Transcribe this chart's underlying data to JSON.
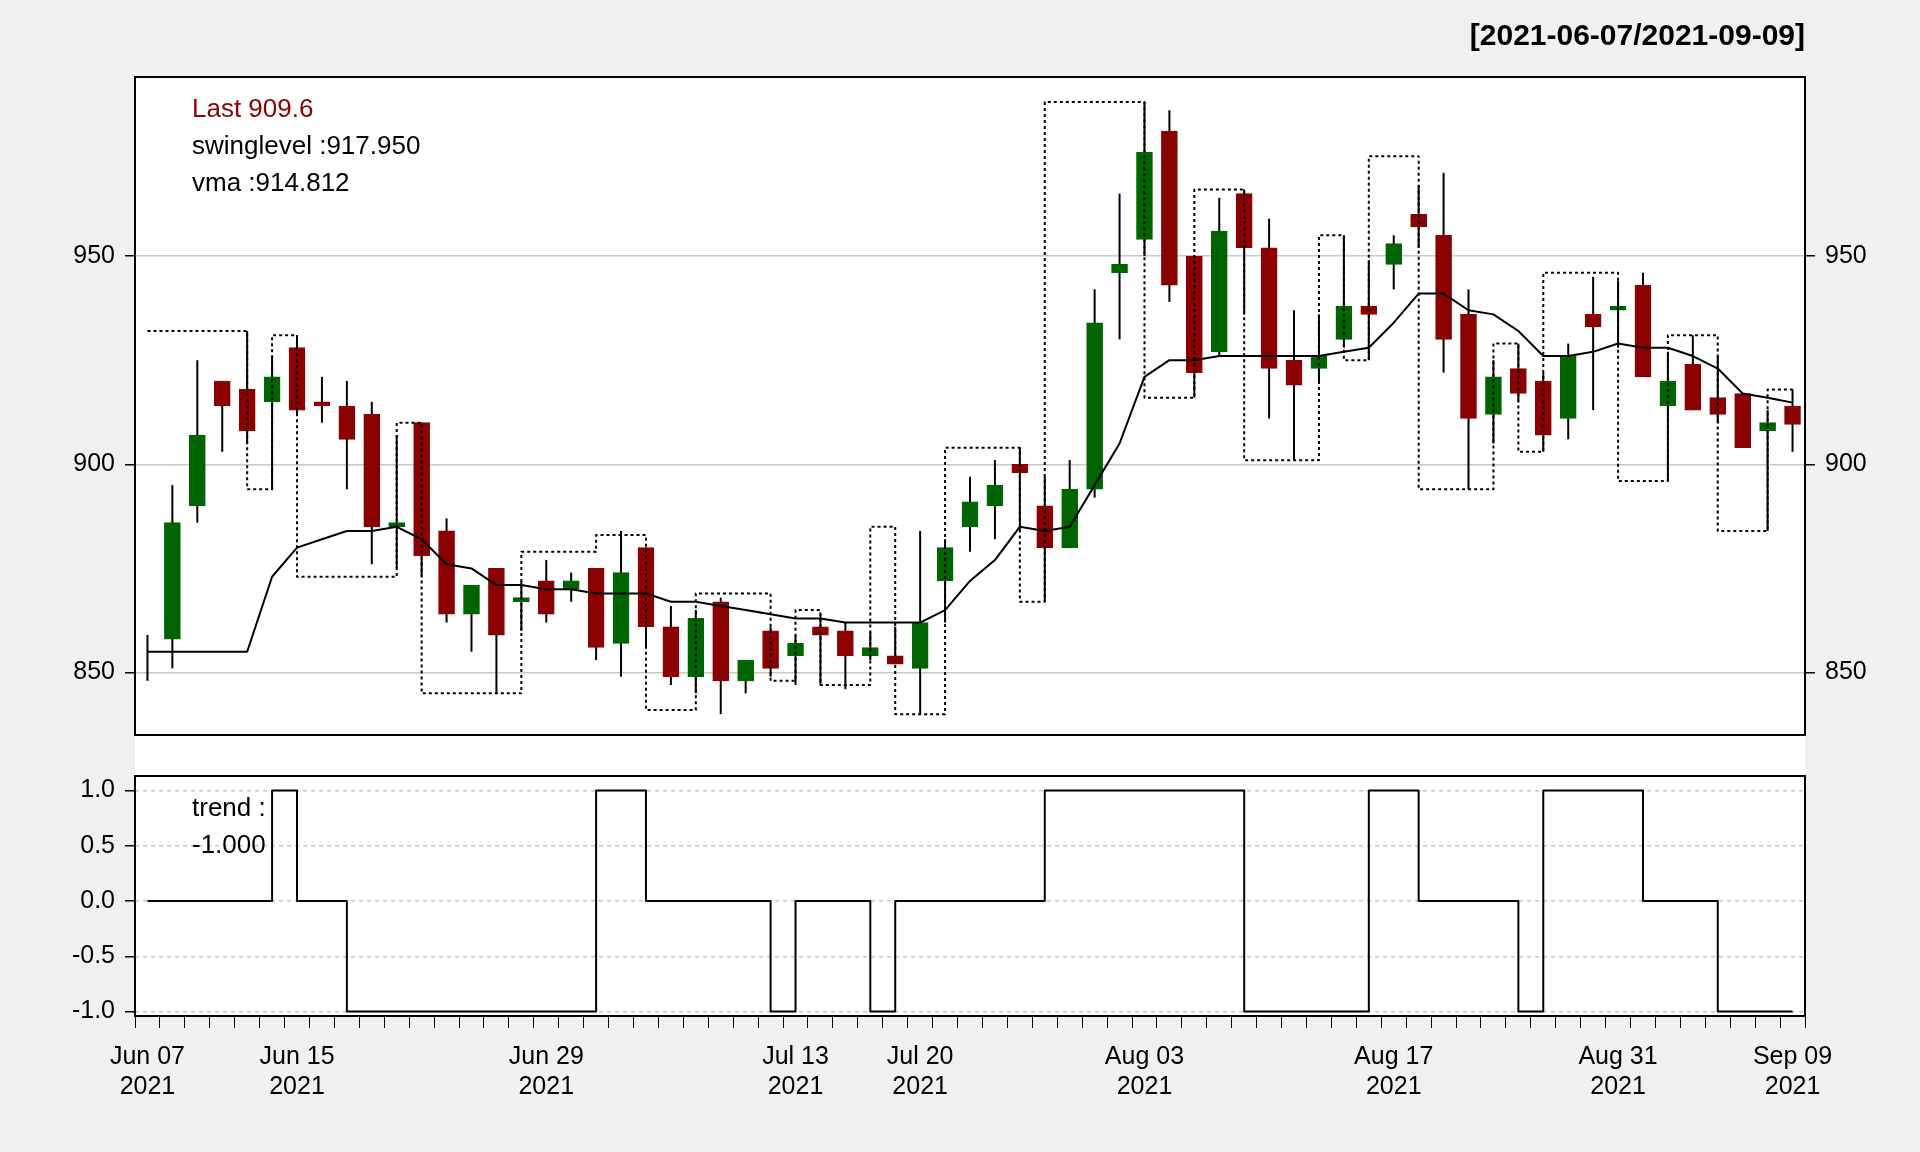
{
  "chart_data": [
    {
      "type": "candlestick",
      "subtitle": "[2021-06-07/2021-09-09]",
      "categories": [
        null,
        null,
        null,
        null,
        null,
        null,
        null,
        null,
        null,
        null,
        null,
        null,
        null,
        null,
        null,
        null,
        null,
        null,
        null,
        null,
        null,
        null,
        null,
        null,
        null,
        null,
        null,
        null,
        null,
        null,
        null,
        null,
        null,
        null,
        null,
        null,
        null,
        null,
        null,
        null,
        null,
        null,
        null,
        null,
        null,
        null,
        null,
        null,
        null,
        null,
        null,
        null,
        null,
        null,
        null,
        null,
        null,
        null,
        null,
        null,
        null,
        null,
        null,
        null,
        null,
        null,
        null
      ],
      "ohlc": [
        [
          855,
          859,
          848,
          855
        ],
        [
          858,
          895,
          851,
          886
        ],
        [
          890,
          925,
          886,
          907
        ],
        [
          920,
          920,
          903,
          914
        ],
        [
          918,
          932,
          905,
          908
        ],
        [
          915,
          926,
          894,
          921
        ],
        [
          928,
          931,
          912,
          913
        ],
        [
          915,
          921,
          910,
          914
        ],
        [
          914,
          920,
          894,
          906
        ],
        [
          912,
          915,
          876,
          885
        ],
        [
          885,
          907,
          875,
          886
        ],
        [
          910,
          910,
          873,
          878
        ],
        [
          884,
          887,
          862,
          864
        ],
        [
          864,
          871,
          855,
          871
        ],
        [
          875,
          875,
          845,
          859
        ],
        [
          867,
          872,
          860,
          868
        ],
        [
          872,
          877,
          862,
          864
        ],
        [
          870,
          874,
          867,
          872
        ],
        [
          875,
          875,
          853,
          856
        ],
        [
          857,
          884,
          849,
          874
        ],
        [
          880,
          880,
          856,
          861
        ],
        [
          861,
          866,
          847,
          849
        ],
        [
          849,
          865,
          845,
          863
        ],
        [
          867,
          868,
          840,
          848
        ],
        [
          848,
          853,
          845,
          853
        ],
        [
          860,
          861,
          849,
          851
        ],
        [
          854,
          859,
          847,
          857
        ],
        [
          861,
          864,
          847,
          859
        ],
        [
          860,
          862,
          846,
          854
        ],
        [
          854,
          860,
          853,
          856
        ],
        [
          854,
          861,
          852,
          852
        ],
        [
          851,
          884,
          840,
          862
        ],
        [
          872,
          882,
          862,
          880
        ],
        [
          885,
          897,
          879,
          891
        ],
        [
          890,
          901,
          882,
          895
        ],
        [
          900,
          904,
          884,
          898
        ],
        [
          890,
          897,
          867,
          880
        ],
        [
          880,
          901,
          880,
          894
        ],
        [
          894,
          942,
          892,
          934
        ],
        [
          946,
          965,
          930,
          948
        ],
        [
          954,
          987,
          950,
          975
        ],
        [
          980,
          985,
          939,
          943
        ],
        [
          950,
          950,
          916,
          922
        ],
        [
          927,
          964,
          926,
          956
        ],
        [
          965,
          966,
          936,
          952
        ],
        [
          952,
          959,
          911,
          923
        ],
        [
          925,
          937,
          901,
          919
        ],
        [
          923,
          936,
          920,
          926
        ],
        [
          930,
          955,
          928,
          938
        ],
        [
          938,
          949,
          925,
          936
        ],
        [
          948,
          955,
          942,
          953
        ],
        [
          960,
          967,
          952,
          957
        ],
        [
          955,
          970,
          922,
          930
        ],
        [
          936,
          942,
          894,
          911
        ],
        [
          912,
          925,
          905,
          921
        ],
        [
          923,
          929,
          915,
          917
        ],
        [
          920,
          922,
          903,
          907
        ],
        [
          911,
          929,
          906,
          926
        ],
        [
          936,
          945,
          913,
          933
        ],
        [
          937,
          944,
          928,
          938
        ],
        [
          943,
          946,
          921,
          921
        ],
        [
          914,
          927,
          896,
          920
        ],
        [
          924,
          931,
          913,
          913
        ],
        [
          916,
          926,
          910,
          912
        ],
        [
          917,
          917,
          904,
          904
        ],
        [
          908,
          913,
          884,
          910
        ],
        [
          914,
          918,
          903,
          909.6
        ]
      ],
      "colors": [
        "#006400",
        "#006400",
        "#006400",
        "#8b0000",
        "#8b0000",
        "#006400",
        "#8b0000",
        "#8b0000",
        "#8b0000",
        "#8b0000",
        "#006400",
        "#8b0000",
        "#8b0000",
        "#006400",
        "#8b0000",
        "#006400",
        "#8b0000",
        "#006400",
        "#8b0000",
        "#006400",
        "#8b0000",
        "#8b0000",
        "#006400",
        "#8b0000",
        "#006400",
        "#8b0000",
        "#006400",
        "#8b0000",
        "#8b0000",
        "#006400",
        "#8b0000",
        "#006400",
        "#006400",
        "#006400",
        "#006400",
        "#8b0000",
        "#8b0000",
        "#006400",
        "#006400",
        "#006400",
        "#006400",
        "#8b0000",
        "#8b0000",
        "#006400",
        "#8b0000",
        "#8b0000",
        "#8b0000",
        "#006400",
        "#006400",
        "#8b0000",
        "#006400",
        "#8b0000",
        "#8b0000",
        "#8b0000",
        "#006400",
        "#8b0000",
        "#8b0000",
        "#006400",
        "#8b0000",
        "#006400",
        "#8b0000",
        "#006400",
        "#8b0000",
        "#8b0000",
        "#8b0000",
        "#006400",
        "#8b0000"
      ],
      "series": [
        {
          "type": "line",
          "color": "#000000",
          "values": [
            855,
            855,
            855,
            855,
            855,
            873,
            880,
            882,
            884,
            884,
            885,
            882,
            876,
            875,
            871,
            871,
            870,
            870,
            869,
            869,
            869,
            867,
            867,
            866,
            865,
            864,
            863,
            863,
            862,
            862,
            862,
            862,
            865,
            872,
            877,
            885,
            884,
            885,
            895,
            905,
            921,
            925,
            925,
            926,
            926,
            926,
            926,
            926,
            927,
            928,
            934,
            941,
            941,
            937,
            936,
            932,
            926,
            926,
            927,
            929,
            928,
            928,
            926,
            923,
            917,
            916,
            914.812
          ]
        },
        {
          "type": "step",
          "color": "#000000",
          "line_style": "dotted",
          "values": [
            932,
            932,
            932,
            932,
            932,
            894,
            931,
            873,
            873,
            873,
            873,
            910,
            845,
            845,
            845,
            845,
            879,
            879,
            879,
            883,
            883,
            841,
            841,
            869,
            869,
            869,
            848,
            865,
            847,
            847,
            885,
            840,
            840,
            904,
            904,
            904,
            867,
            987,
            987,
            987,
            987,
            916,
            916,
            966,
            966,
            901,
            901,
            901,
            955,
            925,
            974,
            974,
            894,
            894,
            894,
            929,
            903,
            946,
            946,
            946,
            896,
            896,
            931,
            931,
            884,
            884,
            917.95
          ]
        }
      ],
      "ylim": [
        835,
        993
      ],
      "yticks": [
        850,
        900,
        950
      ],
      "y2lim": [
        835,
        993
      ],
      "y2ticks": [
        850,
        900,
        950
      ],
      "grid": "y",
      "tick_labels": "y",
      "annotations": [
        "Last 909.6",
        "swinglevel :917.950",
        "vma :914.812"
      ]
    },
    {
      "type": "step",
      "color": "#000000",
      "categories": [
        "Jun 07 2021",
        null,
        null,
        null,
        null,
        null,
        "Jun 15 2021",
        null,
        null,
        null,
        null,
        null,
        null,
        null,
        null,
        null,
        "Jun 29 2021",
        null,
        null,
        null,
        null,
        null,
        null,
        null,
        null,
        null,
        "Jul 13 2021",
        null,
        null,
        null,
        null,
        "Jul 20 2021",
        null,
        null,
        null,
        null,
        null,
        null,
        null,
        null,
        "Aug 03 2021",
        null,
        null,
        null,
        null,
        null,
        null,
        null,
        null,
        null,
        "Aug 17 2021",
        null,
        null,
        null,
        null,
        null,
        null,
        null,
        null,
        "Aug 31 2021",
        null,
        null,
        null,
        null,
        null,
        null,
        "Sep 09 2021"
      ],
      "values": [
        0,
        0,
        0,
        0,
        0,
        0,
        1,
        0,
        0,
        -1,
        -1,
        -1,
        -1,
        -1,
        -1,
        -1,
        -1,
        -1,
        -1,
        1,
        1,
        0,
        0,
        0,
        0,
        0,
        -1,
        0,
        0,
        0,
        -1,
        0,
        0,
        0,
        0,
        0,
        0,
        1,
        1,
        1,
        1,
        1,
        1,
        1,
        1,
        -1,
        -1,
        -1,
        -1,
        -1,
        1,
        1,
        0,
        0,
        0,
        0,
        -1,
        1,
        1,
        1,
        1,
        0,
        0,
        0,
        -1,
        -1,
        -1
      ],
      "ylim": [
        -1.04,
        1.13
      ],
      "yticks": [
        {
          "value": -1,
          "label": "-1.0"
        },
        {
          "value": -0.5,
          "label": "-0.5"
        },
        {
          "value": 0,
          "label": "0.0"
        },
        {
          "value": 0.5,
          "label": "0.5"
        },
        {
          "value": 1,
          "label": "1.0"
        }
      ],
      "grid": "y",
      "annotations": [
        "trend :\n-1.000"
      ]
    }
  ]
}
